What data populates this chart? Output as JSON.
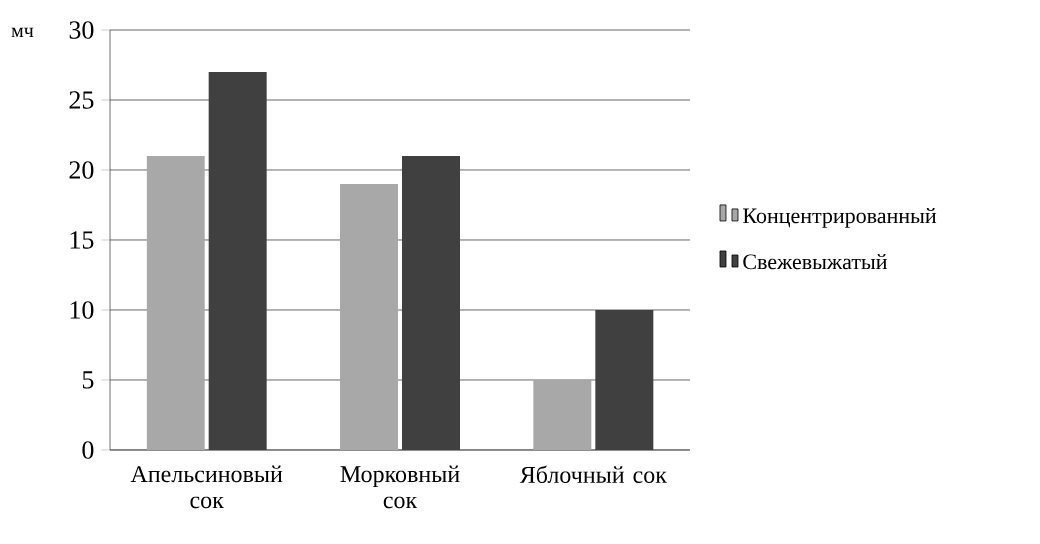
{
  "chart_data": {
    "type": "bar",
    "ylabel": "мч",
    "categories": [
      "Апельсиновый сок",
      "Морковный сок",
      "Яблочный сок"
    ],
    "series": [
      {
        "name": "Концентрированный",
        "color": "#a8a8a8",
        "values": [
          21,
          19,
          5
        ]
      },
      {
        "name": "Свежевыжатый",
        "color": "#404040",
        "values": [
          27,
          21,
          10
        ]
      }
    ],
    "ylim": [
      0,
      30
    ],
    "yticks": [
      0,
      5,
      10,
      15,
      20,
      25,
      30
    ],
    "grid": "y",
    "legend": "right"
  }
}
